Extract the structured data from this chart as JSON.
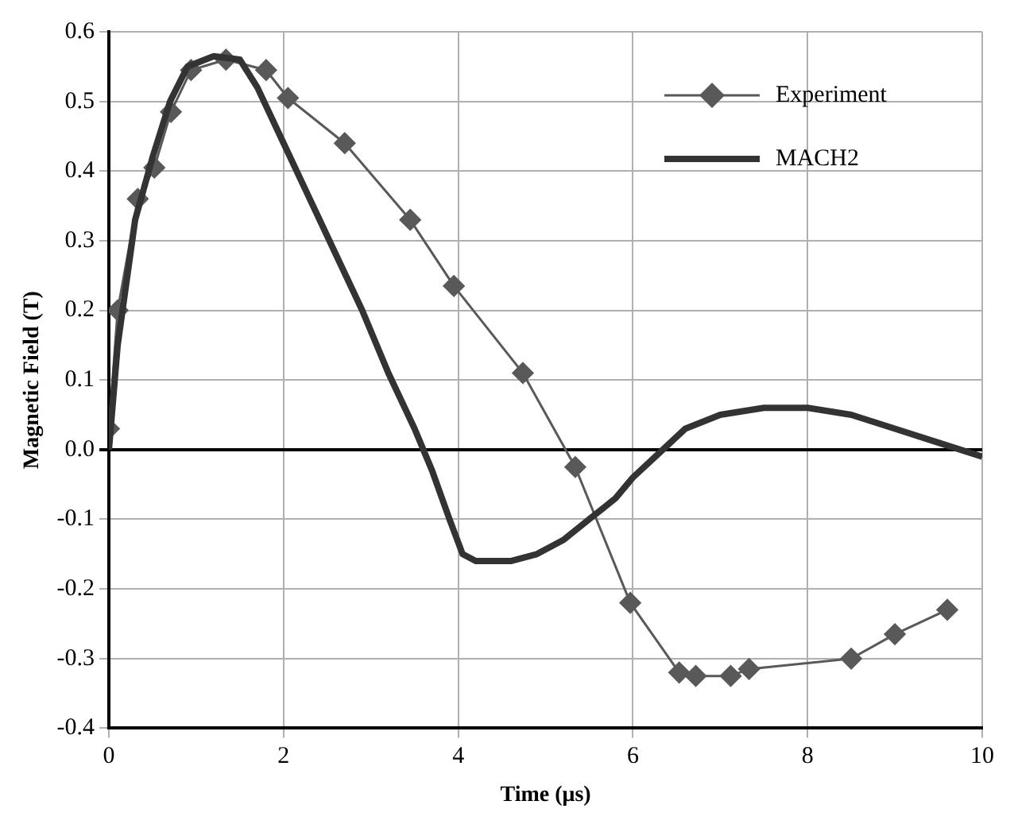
{
  "chart_data": {
    "type": "line",
    "xlabel": "Time (μs)",
    "ylabel": "Magnetic Field (T)",
    "xlim": [
      0,
      10
    ],
    "xticks": [
      0,
      2,
      4,
      6,
      8,
      10
    ],
    "ylim": [
      -0.4,
      0.6
    ],
    "yticks": [
      -0.4,
      -0.3,
      -0.2,
      -0.1,
      {
        "value": 0,
        "label": "0.0"
      },
      0.1,
      0.2,
      0.3,
      0.4,
      0.5,
      0.6
    ],
    "grid": true,
    "legend": "top right",
    "series": [
      {
        "name": "Experiment",
        "color": "#595959",
        "marker": "diamond",
        "x": [
          0,
          0.1,
          0.33,
          0.52,
          0.71,
          0.94,
          1.34,
          1.8,
          2.05,
          2.7,
          3.45,
          3.95,
          4.74,
          5.34,
          5.97,
          6.53,
          6.72,
          7.12,
          7.33,
          8.5,
          9.0,
          9.6
        ],
        "values": [
          0.03,
          0.2,
          0.36,
          0.405,
          0.485,
          0.545,
          0.56,
          0.545,
          0.505,
          0.44,
          0.33,
          0.235,
          0.11,
          -0.025,
          -0.22,
          -0.32,
          -0.325,
          -0.325,
          -0.315,
          -0.3,
          -0.265,
          -0.23
        ]
      },
      {
        "name": "MACH2",
        "color": "#333333",
        "marker": "none",
        "x": [
          0,
          0.1,
          0.3,
          0.5,
          0.7,
          0.9,
          1.2,
          1.5,
          1.7,
          2.0,
          2.3,
          2.6,
          2.9,
          3.2,
          3.5,
          3.7,
          3.9,
          4.05,
          4.2,
          4.4,
          4.6,
          4.9,
          5.2,
          5.5,
          5.8,
          6.0,
          6.3,
          6.6,
          7.0,
          7.5,
          8.0,
          8.5,
          9.0,
          9.5,
          10
        ],
        "values": [
          0.0,
          0.15,
          0.33,
          0.42,
          0.5,
          0.55,
          0.565,
          0.56,
          0.52,
          0.44,
          0.36,
          0.28,
          0.2,
          0.11,
          0.03,
          -0.03,
          -0.1,
          -0.15,
          -0.16,
          -0.16,
          -0.16,
          -0.15,
          -0.13,
          -0.1,
          -0.07,
          -0.04,
          -0.005,
          0.03,
          0.05,
          0.06,
          0.06,
          0.05,
          0.03,
          0.01,
          -0.01
        ]
      }
    ]
  }
}
